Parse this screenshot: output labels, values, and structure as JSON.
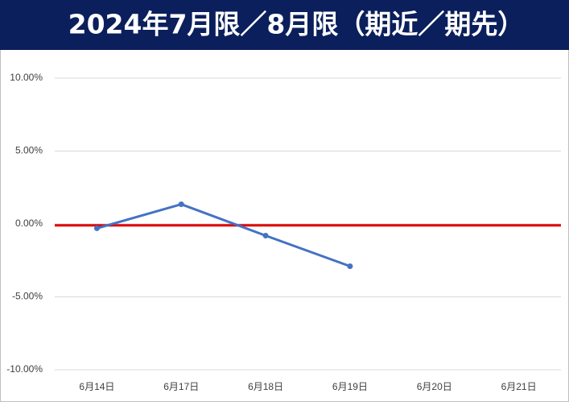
{
  "chart_data": {
    "type": "line",
    "title": "2024年7月限／8月限（期近／期先）",
    "categories": [
      "6月14日",
      "6月17日",
      "6月18日",
      "6月19日",
      "6月20日",
      "6月21日"
    ],
    "series": [
      {
        "color": "#4472c4",
        "values": [
          -0.3,
          1.35,
          -0.8,
          -2.9,
          null,
          null
        ]
      }
    ],
    "hline": {
      "value": -0.1,
      "color": "#e00000"
    },
    "ylim": [
      -10,
      10
    ],
    "yticks": [
      {
        "value": -10,
        "label": "-10.00%"
      },
      {
        "value": -5,
        "label": "-5.00%"
      },
      {
        "value": 0,
        "label": "0.00%"
      },
      {
        "value": 5,
        "label": "5.00%"
      },
      {
        "value": 10,
        "label": "10.00%"
      }
    ],
    "grid": true
  }
}
